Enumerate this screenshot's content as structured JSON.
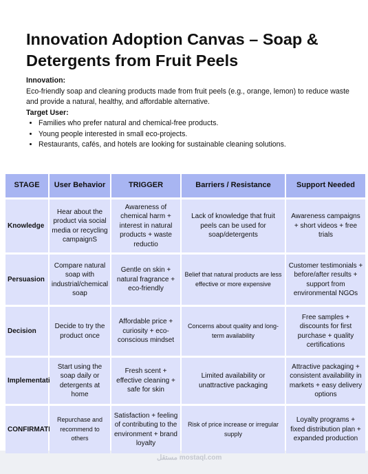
{
  "header": {
    "title": "Innovation Adoption Canvas – Soap & Detergents from Fruit Peels"
  },
  "innovation": {
    "label": "Innovation:",
    "text": "Eco-friendly soap and cleaning products made from fruit peels (e.g., orange, lemon) to reduce waste and provide a natural, healthy, and affordable alternative."
  },
  "target": {
    "label": "Target User:",
    "items": [
      "Families who prefer natural and chemical-free products.",
      "Young people interested in small eco-projects.",
      "Restaurants, cafés, and hotels are looking for sustainable cleaning solutions."
    ]
  },
  "table": {
    "headers": [
      "STAGE",
      "User Behavior",
      "TRIGGER",
      "Barriers / Resistance",
      "Support Needed"
    ],
    "rows": [
      [
        "Knowledge",
        "Hear about the product via social media or recycling campaignS",
        "Awareness of chemical harm + interest in natural products  + waste reductio",
        "Lack of knowledge that fruit peels can be used for soap/detergents",
        "Awareness campaigns + short videos + free trials"
      ],
      [
        "Persuasion",
        "Compare natural soap with industrial/chemical soap",
        "Gentle on skin + natural fragrance + eco-friendly",
        "Belief that natural products are less effective or more expensive",
        "Customer testimonials + before/after results + support from environmental NGOs"
      ],
      [
        "Decision",
        "Decide to try the product once",
        "Affordable price + curiosity + eco-conscious mindset",
        "Concerns about quality and long-term availability",
        "Free samples + discounts for first purchase + quality certifications"
      ],
      [
        "Implementation",
        "Start using the soap daily or detergents at home",
        "Fresh scent + effective cleaning + safe for skin",
        "Limited availability or unattractive packaging",
        "Attractive packaging + consistent availability in markets + easy delivery options"
      ],
      [
        "CONFIRMATION",
        "Repurchase and recommend to others",
        "Satisfaction + feeling of contributing to the environment + brand loyalty",
        "Risk of price increase or irregular supply",
        "Loyalty programs + fixed distribution plan + expanded production"
      ]
    ]
  },
  "watermark": "مستقل mostaql.com"
}
